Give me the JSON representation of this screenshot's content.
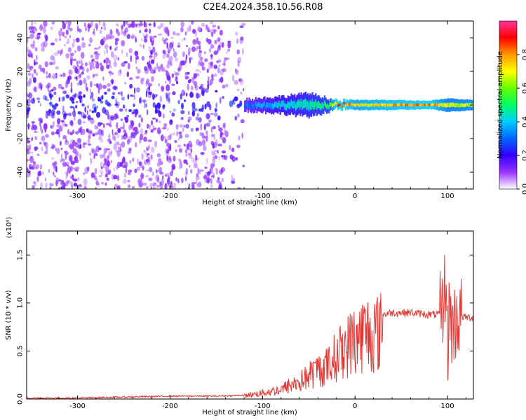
{
  "figure": {
    "title": "C2E4.2024.358.10.56.R08"
  },
  "chart_data": [
    {
      "type": "heatmap",
      "name": "spectrogram",
      "xlabel": "Height of straight line (km)",
      "ylabel": "Frequency (Hz)",
      "xlim": [
        -355,
        128
      ],
      "ylim": [
        -50,
        50
      ],
      "xticks": [
        -300,
        -200,
        -100,
        0,
        100
      ],
      "xtick_labels": [
        "-300",
        "-200",
        "-100",
        "0",
        "100"
      ],
      "yticks": [
        -40,
        -20,
        0,
        20,
        40
      ],
      "ytick_labels": [
        "-40",
        "-20",
        "0",
        "20",
        "40"
      ],
      "colorbar": {
        "label": "Normalized spectral amplitude",
        "range": [
          0,
          1
        ],
        "ticks": [
          0,
          0.2,
          0.4,
          0.6,
          0.8
        ],
        "tick_labels": [
          "0.0",
          "0.2",
          "0.4",
          "0.6",
          "0.8"
        ],
        "colormap": [
          "#ffffff",
          "#9933ff",
          "#3300ff",
          "#0066ff",
          "#00ccff",
          "#00ff66",
          "#66ff00",
          "#ffff00",
          "#ff9900",
          "#ff0000",
          "#ff3399"
        ]
      },
      "noise_region_x": [
        -355,
        -120
      ],
      "signal_band": [
        {
          "x": -120,
          "half_width_hz": 2.5,
          "amplitude": 0.35
        },
        {
          "x": -80,
          "half_width_hz": 4,
          "amplitude": 0.45
        },
        {
          "x": -50,
          "half_width_hz": 6,
          "amplitude": 0.5
        },
        {
          "x": -30,
          "half_width_hz": 3,
          "amplitude": 0.55
        },
        {
          "x": -20,
          "half_width_hz": 1.5,
          "amplitude": 0.95
        },
        {
          "x": 0,
          "half_width_hz": 2,
          "amplitude": 0.8
        },
        {
          "x": 35,
          "half_width_hz": 2,
          "amplitude": 0.85
        },
        {
          "x": 80,
          "half_width_hz": 1.5,
          "amplitude": 0.9
        },
        {
          "x": 100,
          "half_width_hz": 3,
          "amplitude": 0.7
        },
        {
          "x": 128,
          "half_width_hz": 2,
          "amplitude": 0.75
        }
      ]
    },
    {
      "type": "line",
      "name": "snr",
      "xlabel": "Height of straight line (km)",
      "ylabel": "SNR (10 * v/v)",
      "y_scale_label": "(x10⁴)",
      "xlim": [
        -355,
        128
      ],
      "ylim": [
        0,
        1.75
      ],
      "xticks": [
        -300,
        -200,
        -100,
        0,
        100
      ],
      "xtick_labels": [
        "-300",
        "-200",
        "-100",
        "0",
        "100"
      ],
      "yticks": [
        0,
        0.5,
        1.0,
        1.5
      ],
      "ytick_labels": [
        "0.0",
        "0.5",
        "1.0",
        "1.5"
      ],
      "color": "#e8332f",
      "series": [
        {
          "name": "SNR",
          "x": [
            -355,
            -300,
            -250,
            -200,
            -150,
            -120,
            -100,
            -90,
            -80,
            -70,
            -60,
            -50,
            -40,
            -30,
            -25,
            -20,
            -15,
            -10,
            -5,
            0,
            10,
            20,
            30,
            40,
            50,
            60,
            70,
            80,
            90,
            95,
            98,
            100,
            102,
            105,
            110,
            115,
            120,
            128
          ],
          "y": [
            0.01,
            0.01,
            0.02,
            0.03,
            0.03,
            0.04,
            0.08,
            0.1,
            0.12,
            0.18,
            0.22,
            0.3,
            0.38,
            0.42,
            0.5,
            0.55,
            0.62,
            0.68,
            0.72,
            0.78,
            0.85,
            0.87,
            0.88,
            0.9,
            0.9,
            0.9,
            0.89,
            0.88,
            0.88,
            0.9,
            1.3,
            0.5,
            1.0,
            0.7,
            0.86,
            0.86,
            0.85,
            0.85
          ]
        }
      ]
    }
  ]
}
